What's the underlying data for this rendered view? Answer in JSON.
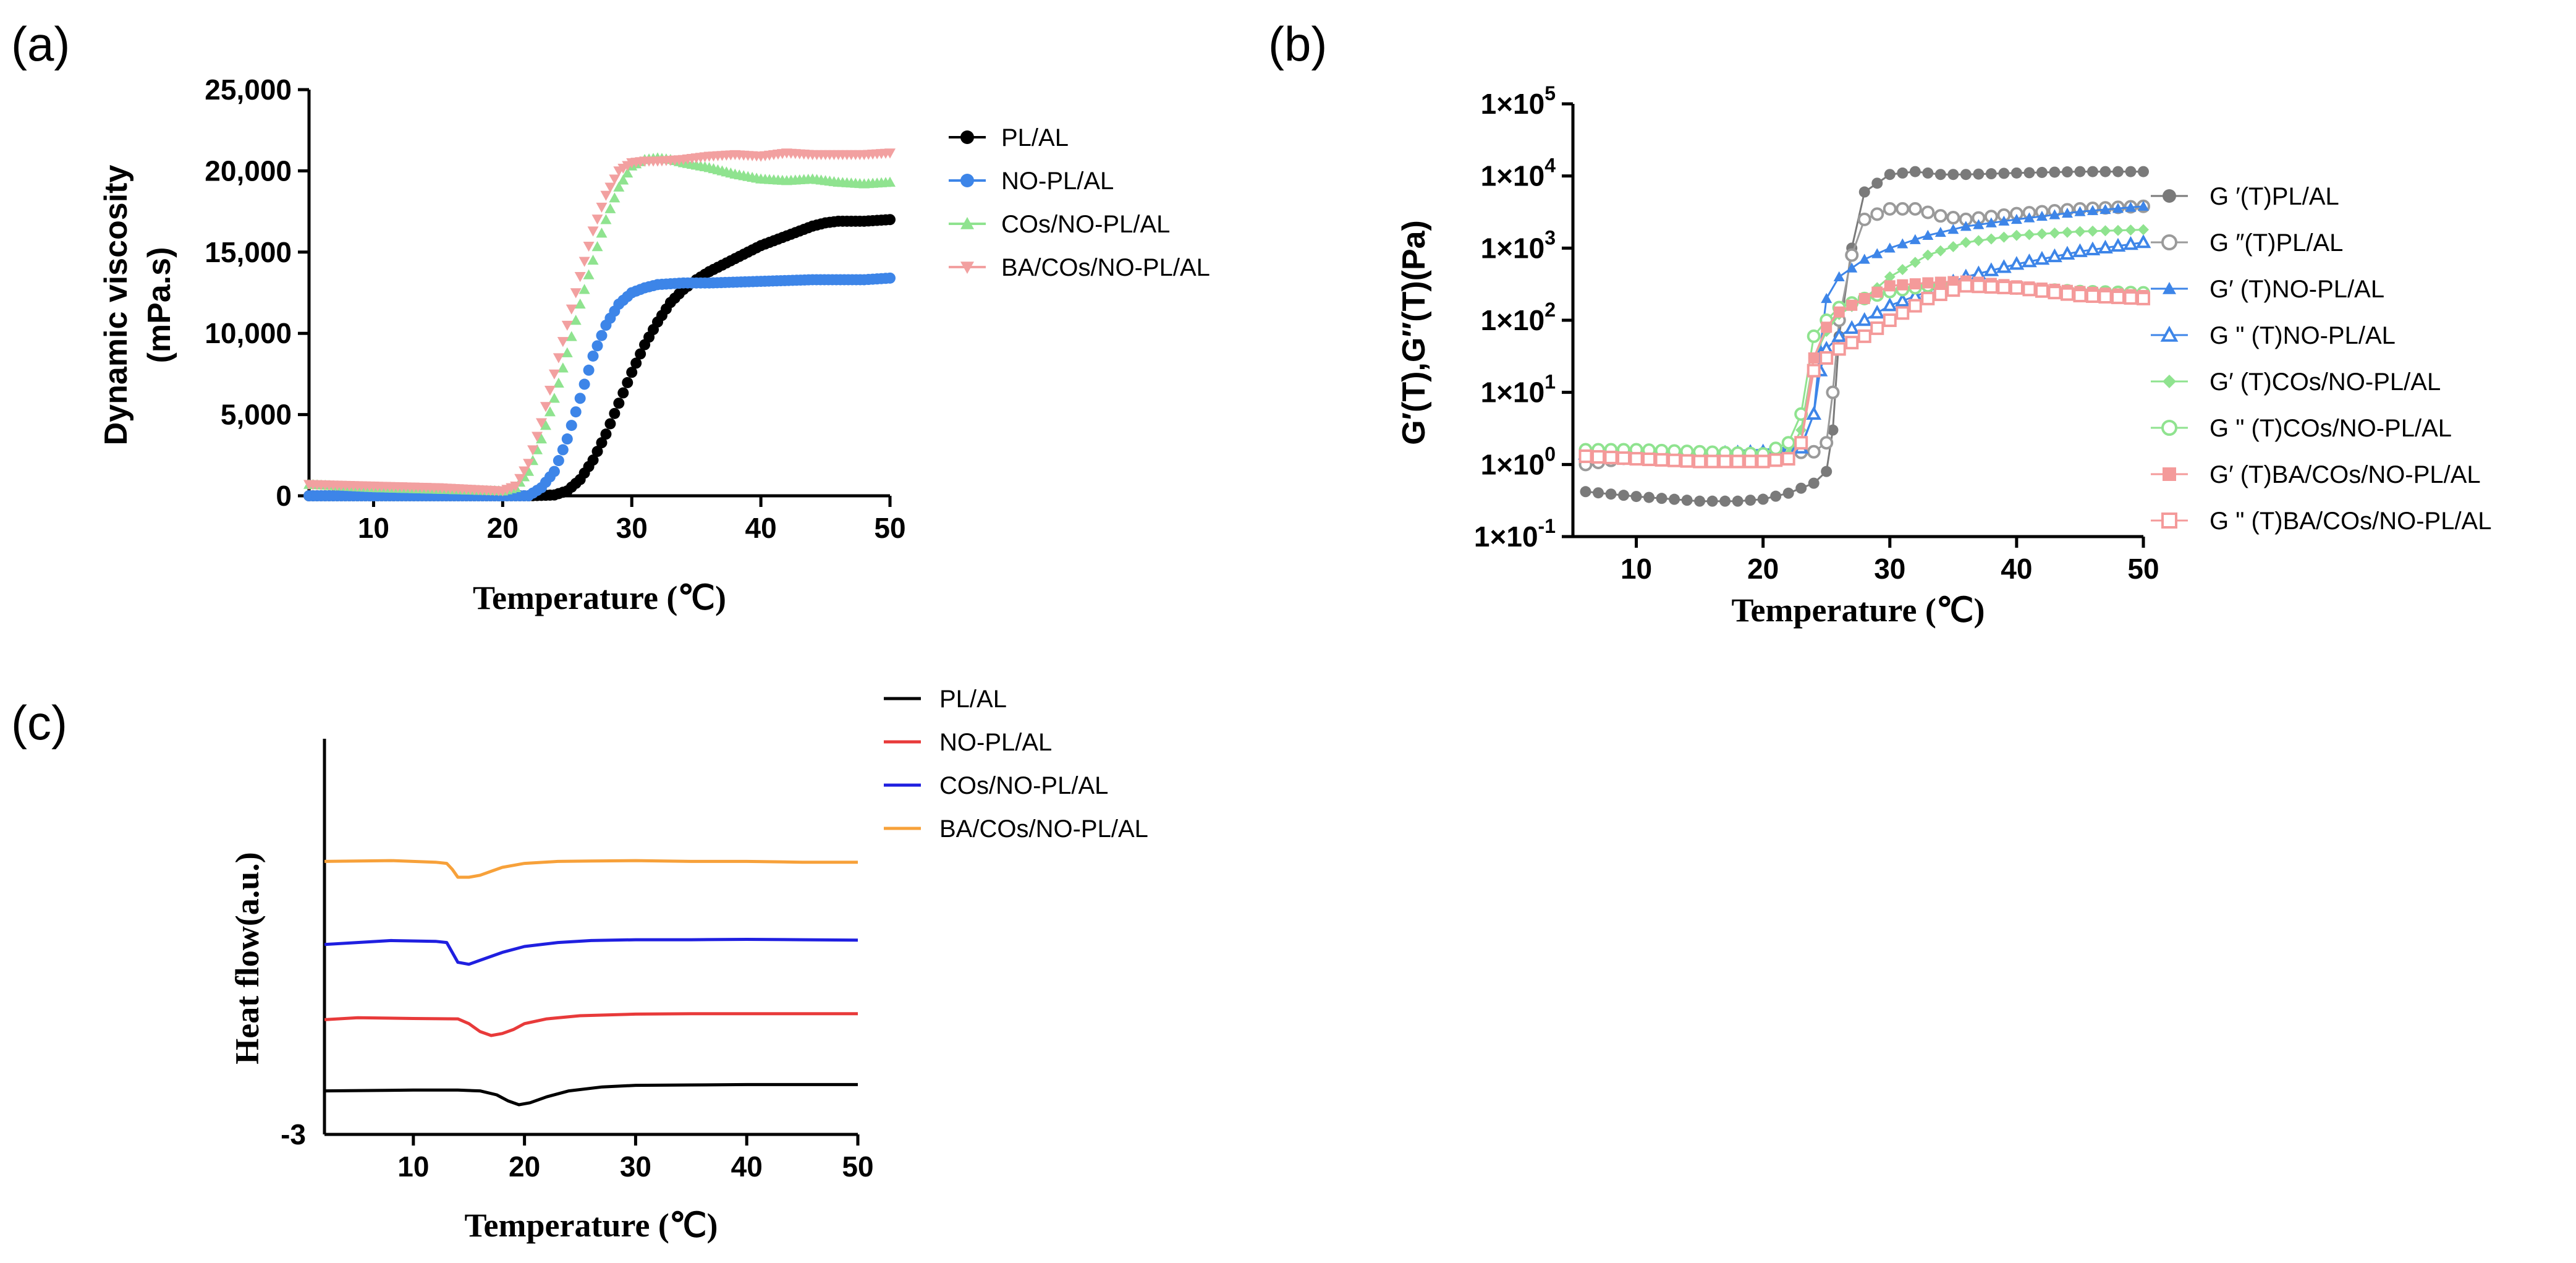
{
  "chart_data": [
    {
      "panel": "(a)",
      "type": "scatter",
      "xlabel": "Temperature (℃)",
      "ylabel": "Dynamic viscosity (mPa.s)",
      "ylabel_lines": [
        "Dynamic viscosity",
        "(mPa.s)"
      ],
      "xlim": [
        5,
        50
      ],
      "ylim": [
        0,
        25000
      ],
      "xticks": [
        10,
        20,
        30,
        40,
        50
      ],
      "yticks": [
        0,
        5000,
        10000,
        15000,
        20000,
        25000
      ],
      "ytick_labels": [
        "0",
        "5,000",
        "10,000",
        "15,000",
        "20,000",
        "25,000"
      ],
      "legend_position": "right",
      "series": [
        {
          "name": "PL/AL",
          "color": "#000000",
          "marker": "circle",
          "x": [
            5,
            10,
            15,
            20,
            22,
            24,
            25,
            26,
            27,
            28,
            29,
            30,
            31,
            32,
            33,
            34,
            35,
            36,
            38,
            40,
            42,
            44,
            45,
            46,
            48,
            50
          ],
          "y": [
            0,
            0,
            0,
            0,
            0,
            50,
            300,
            1000,
            2200,
            3800,
            5700,
            7600,
            9300,
            10700,
            11900,
            12700,
            13300,
            13800,
            14600,
            15400,
            16000,
            16600,
            16800,
            16900,
            16900,
            17000
          ]
        },
        {
          "name": "NO-PL/AL",
          "color": "#3d85e8",
          "marker": "circle",
          "x": [
            5,
            10,
            15,
            20,
            22,
            23,
            24,
            25,
            26,
            27,
            28,
            29,
            30,
            31,
            32,
            34,
            36,
            40,
            44,
            48,
            50
          ],
          "y": [
            0,
            0,
            0,
            0,
            0,
            500,
            1500,
            3500,
            6000,
            8600,
            10500,
            11800,
            12500,
            12800,
            13000,
            13100,
            13100,
            13200,
            13300,
            13300,
            13400
          ]
        },
        {
          "name": "COs/NO-PL/AL",
          "color": "#8fe38f",
          "marker": "triangle-up",
          "x": [
            5,
            10,
            15,
            20,
            21,
            22,
            23,
            24,
            25,
            26,
            27,
            28,
            29,
            30,
            31,
            32,
            33,
            34,
            36,
            38,
            40,
            42,
            44,
            46,
            48,
            50
          ],
          "y": [
            700,
            500,
            400,
            300,
            500,
            1500,
            3500,
            6000,
            8800,
            11800,
            14500,
            17000,
            19000,
            20300,
            20700,
            20800,
            20700,
            20500,
            20200,
            19800,
            19500,
            19400,
            19500,
            19300,
            19200,
            19300
          ]
        },
        {
          "name": "BA/COs/NO-PL/AL",
          "color": "#f2a0a0",
          "marker": "triangle-down",
          "x": [
            5,
            10,
            15,
            20,
            21,
            22,
            23,
            24,
            25,
            26,
            27,
            28,
            29,
            30,
            31,
            32,
            34,
            36,
            38,
            40,
            42,
            44,
            46,
            48,
            50
          ],
          "y": [
            700,
            600,
            500,
            300,
            600,
            2000,
            4500,
            7500,
            10500,
            13500,
            16300,
            18500,
            20000,
            20500,
            20600,
            20600,
            20700,
            20900,
            21000,
            20900,
            21100,
            21000,
            21000,
            21000,
            21100
          ]
        }
      ]
    },
    {
      "panel": "(b)",
      "type": "scatter",
      "yscale": "log",
      "xlabel": "Temperature (℃)",
      "ylabel": "G′(T),G″(T)(Pa)",
      "xlim": [
        5,
        50
      ],
      "ylim_exponent": [
        -1,
        5
      ],
      "xticks": [
        10,
        20,
        30,
        40,
        50
      ],
      "ytick_labels": [
        {
          "base": "1×10",
          "exp": "5"
        },
        {
          "base": "1×10",
          "exp": "4"
        },
        {
          "base": "1×10",
          "exp": "3"
        },
        {
          "base": "1×10",
          "exp": "2"
        },
        {
          "base": "1×10",
          "exp": "1"
        },
        {
          "base": "1×10",
          "exp": "0"
        },
        {
          "base": "1×10",
          "exp": "-1"
        }
      ],
      "legend_position": "right",
      "series": [
        {
          "name": "G ′(T)PL/AL",
          "color": "#7a7a7a",
          "marker": "circle",
          "x": [
            6,
            10,
            15,
            18,
            20,
            22,
            24,
            25,
            25.5,
            26,
            27,
            28,
            30,
            32,
            34,
            36,
            40,
            45,
            50
          ],
          "y": [
            0.42,
            0.36,
            0.31,
            0.31,
            0.33,
            0.4,
            0.55,
            0.8,
            3,
            60,
            1000,
            6000,
            10500,
            11500,
            10500,
            10500,
            11000,
            11500,
            11500
          ]
        },
        {
          "name": "G ″(T)PL/AL",
          "color": "#9a9a9a",
          "marker": "circle-open",
          "x": [
            6,
            10,
            15,
            20,
            24,
            25,
            25.5,
            26,
            27,
            28,
            30,
            32,
            34,
            36,
            40,
            45,
            50
          ],
          "y": [
            1,
            1.3,
            1.4,
            1.4,
            1.5,
            2,
            10,
            100,
            800,
            2500,
            3500,
            3500,
            2800,
            2500,
            3000,
            3500,
            3800
          ]
        },
        {
          "name": "G′ (T)NO-PL/AL",
          "color": "#3d85e8",
          "marker": "triangle-up",
          "x": [
            6,
            10,
            15,
            20,
            23,
            24,
            24.5,
            25,
            26,
            28,
            30,
            33,
            36,
            40,
            45,
            50
          ],
          "y": [
            1.5,
            1.5,
            1.5,
            1.6,
            1.8,
            5,
            40,
            200,
            400,
            700,
            1000,
            1500,
            2000,
            2500,
            3200,
            3800
          ]
        },
        {
          "name": "G \" (T)NO-PL/AL",
          "color": "#3d85e8",
          "marker": "triangle-open",
          "x": [
            6,
            10,
            15,
            20,
            23,
            24,
            24.5,
            25,
            26,
            28,
            30,
            33,
            36,
            40,
            45,
            50
          ],
          "y": [
            1.4,
            1.4,
            1.4,
            1.5,
            1.7,
            5,
            20,
            40,
            60,
            100,
            160,
            250,
            400,
            600,
            900,
            1200
          ]
        },
        {
          "name": "G′ (T)COs/NO-PL/AL",
          "color": "#8fe38f",
          "marker": "diamond",
          "x": [
            6,
            10,
            15,
            20,
            22,
            23,
            24,
            25,
            26,
            28,
            30,
            33,
            36,
            40,
            45,
            50
          ],
          "y": [
            1.5,
            1.5,
            1.4,
            1.3,
            1.4,
            3,
            30,
            70,
            120,
            200,
            400,
            800,
            1200,
            1500,
            1700,
            1800
          ]
        },
        {
          "name": "G \" (T)COs/NO-PL/AL",
          "color": "#8fe38f",
          "marker": "circle-open",
          "x": [
            6,
            10,
            15,
            20,
            22,
            23,
            24,
            25,
            26,
            28,
            30,
            33,
            36,
            40,
            45,
            50
          ],
          "y": [
            1.6,
            1.6,
            1.5,
            1.4,
            2,
            5,
            60,
            100,
            150,
            200,
            250,
            300,
            320,
            280,
            250,
            240
          ]
        },
        {
          "name": "G′ (T)BA/COs/NO-PL/AL",
          "color": "#f49a9a",
          "marker": "square",
          "x": [
            6,
            10,
            15,
            20,
            22,
            23,
            24,
            25,
            26,
            28,
            30,
            33,
            36,
            40,
            45,
            50
          ],
          "y": [
            1.3,
            1.2,
            1.1,
            1.1,
            1.2,
            2,
            30,
            80,
            130,
            200,
            300,
            330,
            350,
            300,
            250,
            220
          ]
        },
        {
          "name": "G \" (T)BA/COs/NO-PL/AL",
          "color": "#f49a9a",
          "marker": "square-open",
          "x": [
            6,
            10,
            15,
            20,
            22,
            23,
            24,
            25,
            26,
            28,
            30,
            33,
            36,
            40,
            45,
            50
          ],
          "y": [
            1.3,
            1.2,
            1.1,
            1.1,
            1.2,
            2,
            20,
            30,
            40,
            60,
            100,
            200,
            300,
            280,
            220,
            200
          ]
        }
      ]
    },
    {
      "panel": "(c)",
      "type": "line",
      "xlabel": "Temperature (℃)",
      "ylabel": "Heat flow(a.u.)",
      "xlim": [
        2,
        50
      ],
      "ylim": [
        -3,
        7
      ],
      "xticks": [
        10,
        20,
        30,
        40,
        50
      ],
      "ytick_labels": [
        "-3"
      ],
      "legend_position": "top-right",
      "series": [
        {
          "name": "PL/AL",
          "color": "#000000",
          "x": [
            2,
            10,
            14,
            16,
            17.5,
            18.5,
            19.5,
            20.5,
            22,
            24,
            27,
            30,
            35,
            40,
            45,
            50
          ],
          "y": [
            -1.9,
            -1.88,
            -1.88,
            -1.9,
            -2.0,
            -2.15,
            -2.25,
            -2.2,
            -2.05,
            -1.9,
            -1.8,
            -1.76,
            -1.75,
            -1.74,
            -1.74,
            -1.74
          ]
        },
        {
          "name": "NO-PL/AL",
          "color": "#e83a3a",
          "x": [
            2,
            5,
            10,
            14,
            15,
            16,
            17,
            18,
            19,
            20,
            22,
            25,
            30,
            35,
            40,
            45,
            50
          ],
          "y": [
            -0.1,
            -0.05,
            -0.07,
            -0.08,
            -0.2,
            -0.4,
            -0.5,
            -0.45,
            -0.35,
            -0.2,
            -0.08,
            0.0,
            0.04,
            0.05,
            0.05,
            0.05,
            0.05
          ]
        },
        {
          "name": "COs/NO-PL/AL",
          "color": "#1f1fe0",
          "x": [
            2,
            8,
            12,
            13,
            13.5,
            14,
            15,
            16,
            17,
            18,
            20,
            23,
            26,
            30,
            35,
            40,
            45,
            50
          ],
          "y": [
            1.8,
            1.9,
            1.88,
            1.85,
            1.6,
            1.35,
            1.3,
            1.4,
            1.5,
            1.6,
            1.75,
            1.85,
            1.9,
            1.92,
            1.92,
            1.93,
            1.92,
            1.91
          ]
        },
        {
          "name": "BA/COs/NO-PL/AL",
          "color": "#f7a13a",
          "x": [
            2,
            8,
            12,
            13,
            13.5,
            14,
            15,
            16,
            17,
            18,
            20,
            23,
            26,
            30,
            35,
            40,
            45,
            50
          ],
          "y": [
            3.9,
            3.92,
            3.88,
            3.85,
            3.7,
            3.5,
            3.5,
            3.55,
            3.65,
            3.75,
            3.85,
            3.9,
            3.91,
            3.92,
            3.9,
            3.9,
            3.88,
            3.88
          ]
        }
      ]
    }
  ]
}
